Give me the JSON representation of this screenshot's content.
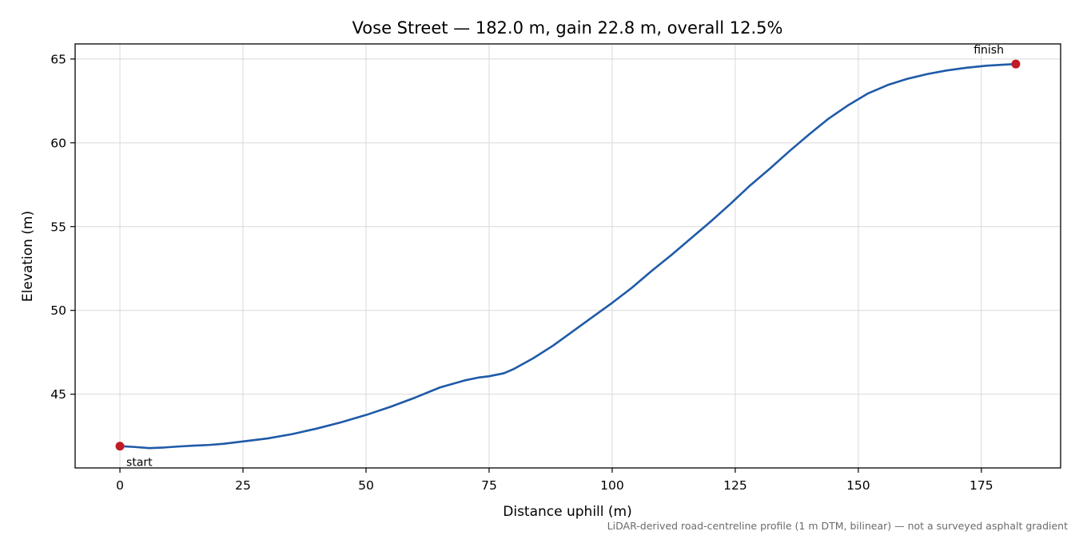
{
  "chart_data": {
    "type": "line",
    "title": "Vose Street — 182.0 m, gain 22.8 m, overall 12.5%",
    "xlabel": "Distance uphill (m)",
    "ylabel": "Elevation (m)",
    "xlim": [
      -9.1,
      191.1
    ],
    "ylim": [
      40.6,
      65.9
    ],
    "xticks": [
      0,
      25,
      50,
      75,
      100,
      125,
      150,
      175
    ],
    "yticks": [
      45,
      50,
      55,
      60,
      65
    ],
    "grid": true,
    "line_color": "#1f5aa8",
    "marker_color": "#c01b27",
    "series": [
      {
        "x": [
          0,
          3,
          6,
          9,
          12,
          15,
          18,
          21,
          25,
          30,
          35,
          40,
          45,
          50,
          55,
          60,
          65,
          70,
          73,
          75,
          78,
          80,
          84,
          88,
          92,
          96,
          100,
          104,
          108,
          112,
          116,
          120,
          124,
          128,
          132,
          136,
          140,
          144,
          148,
          152,
          156,
          160,
          164,
          168,
          172,
          176,
          180,
          182
        ],
        "y": [
          41.9,
          41.85,
          41.78,
          41.82,
          41.88,
          41.93,
          41.97,
          42.04,
          42.18,
          42.36,
          42.62,
          42.95,
          43.33,
          43.76,
          44.25,
          44.8,
          45.4,
          45.82,
          46.0,
          46.07,
          46.25,
          46.5,
          47.15,
          47.9,
          48.75,
          49.6,
          50.45,
          51.35,
          52.35,
          53.3,
          54.3,
          55.3,
          56.35,
          57.45,
          58.45,
          59.5,
          60.5,
          61.45,
          62.25,
          62.95,
          63.45,
          63.82,
          64.1,
          64.32,
          64.48,
          64.6,
          64.67,
          64.7
        ]
      }
    ],
    "annotations": [
      {
        "text": "start",
        "x": 0,
        "y": 41.9
      },
      {
        "text": "finish",
        "x": 182,
        "y": 64.7
      }
    ],
    "footnote": "LiDAR-derived road-centreline profile (1 m DTM, bilinear) — not a surveyed asphalt gradient"
  }
}
